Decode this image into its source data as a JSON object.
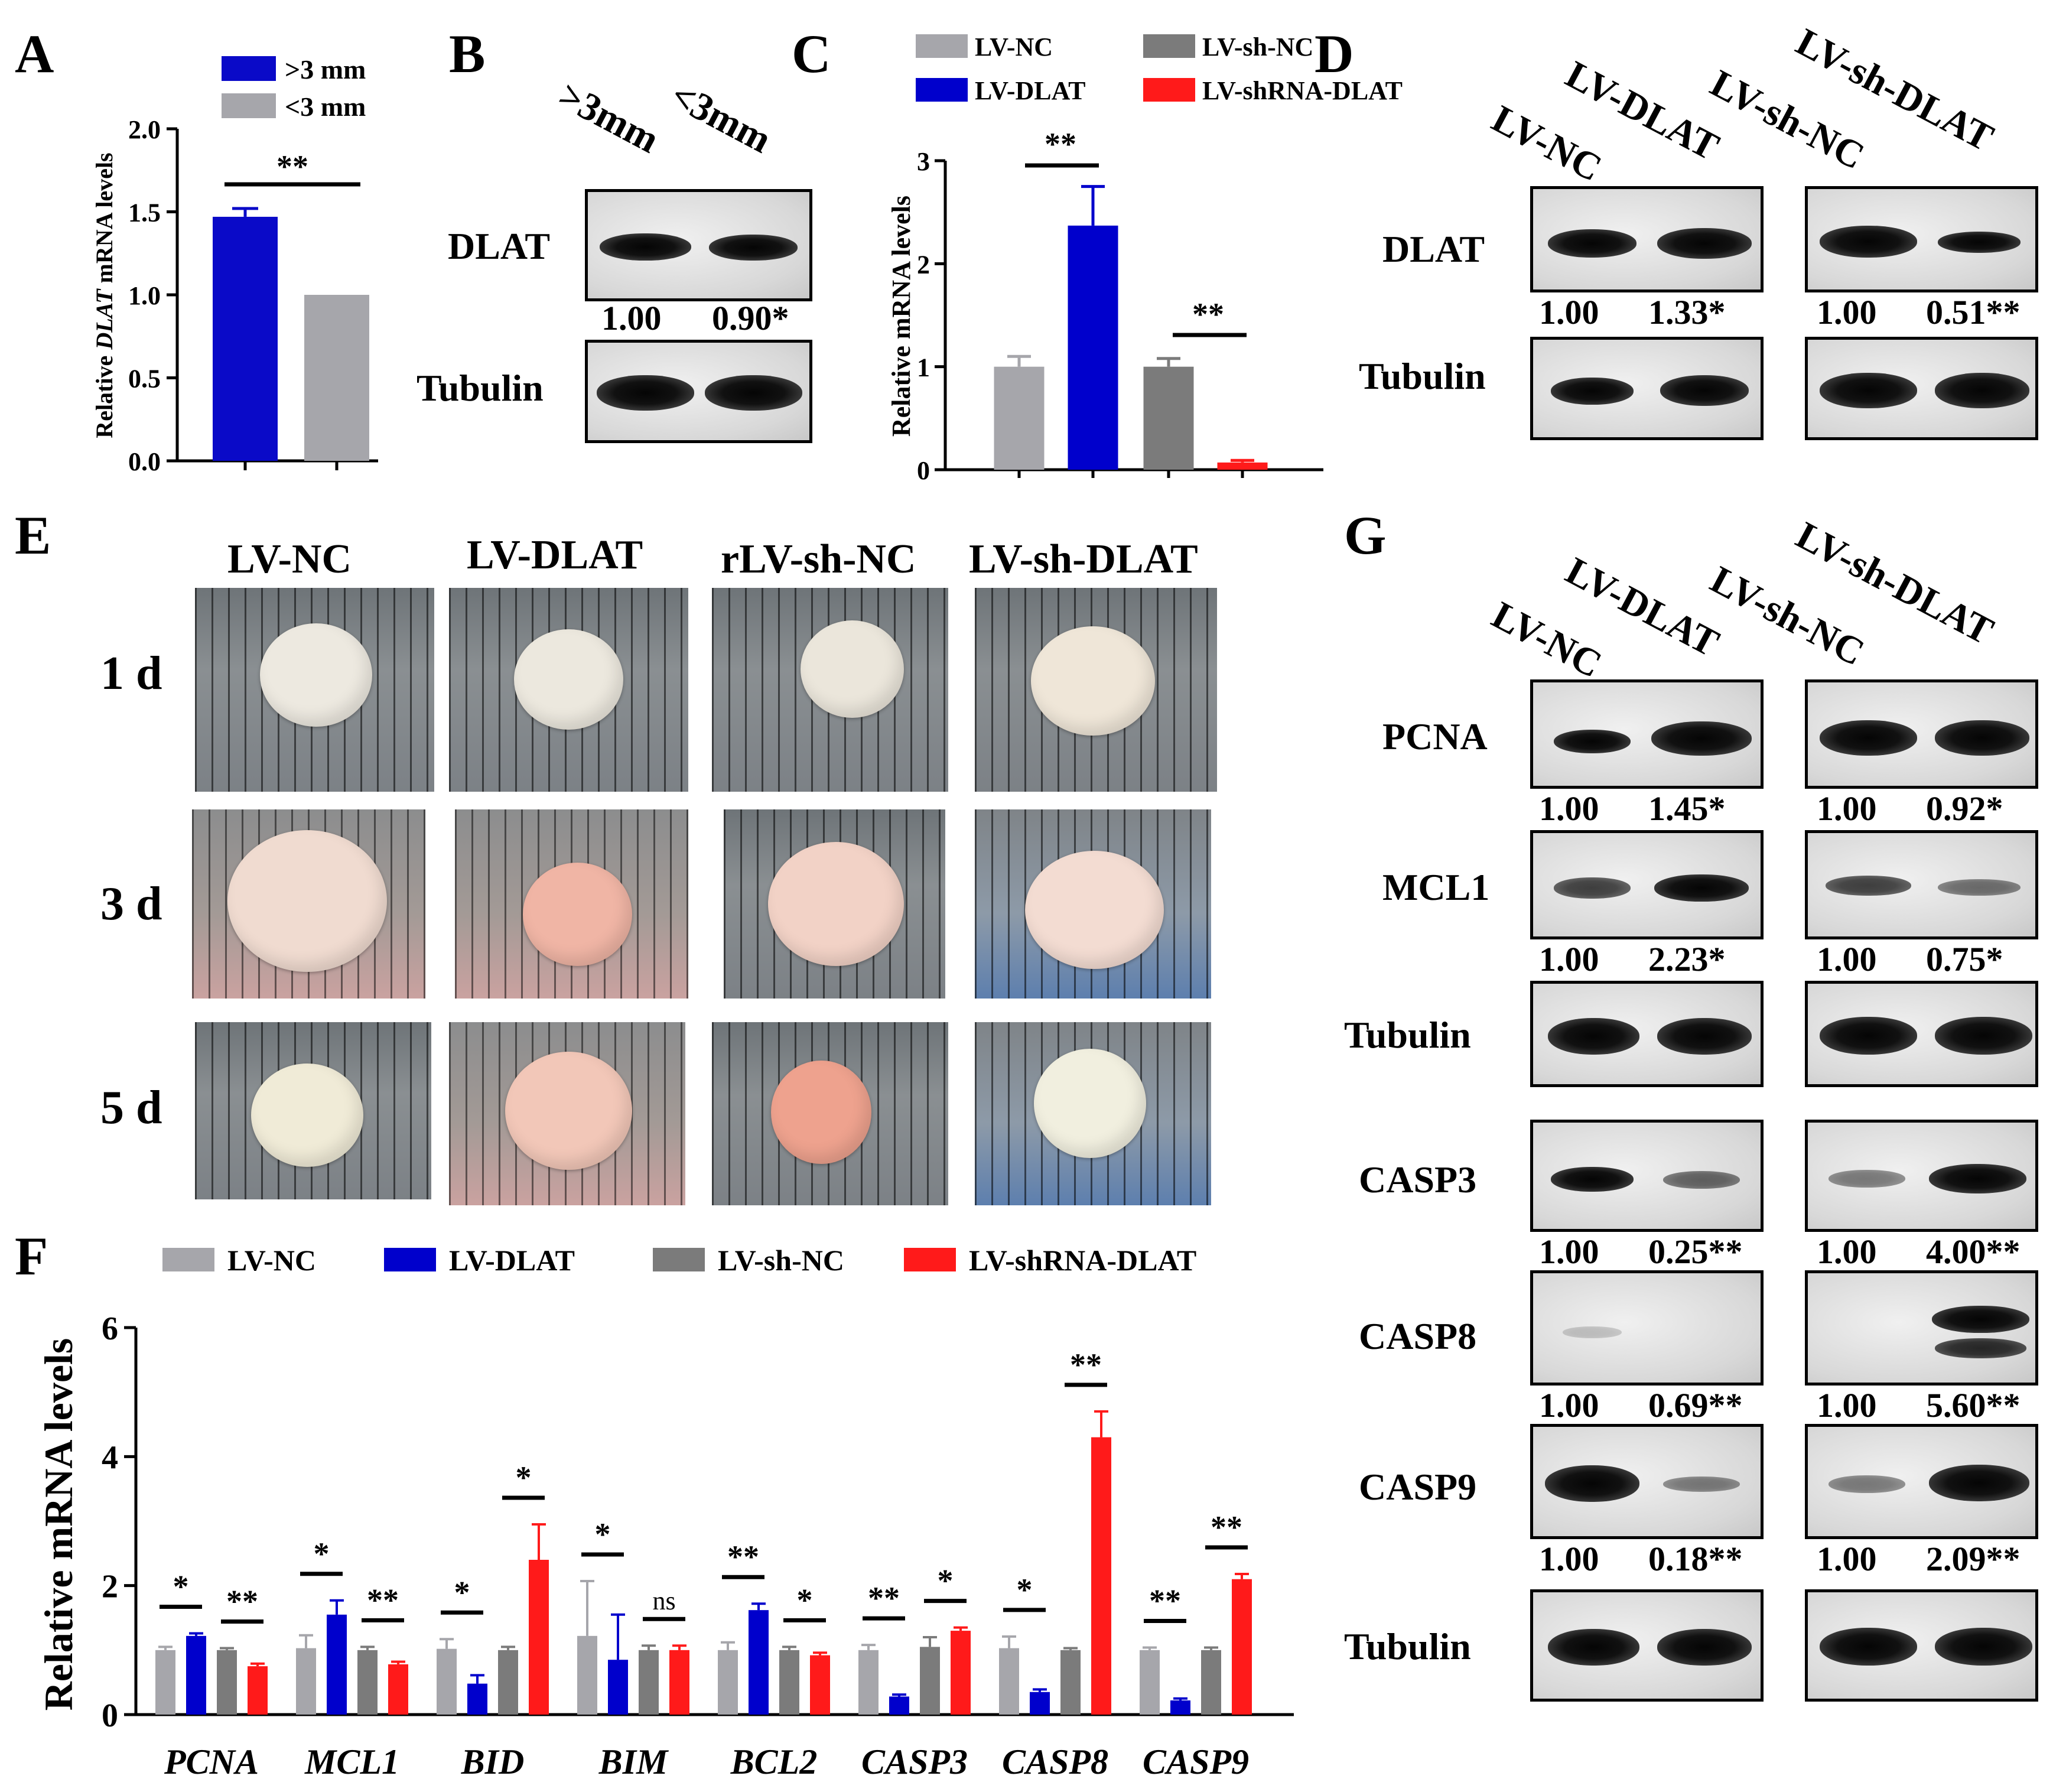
{
  "panels": {
    "A": "A",
    "B": "B",
    "C": "C",
    "D": "D",
    "E": "E",
    "F": "F",
    "G": "G"
  },
  "colors": {
    "lv_nc": "#a6a6ab",
    "lv_dlat": "#0000cc",
    "lv_sh_nc": "#7b7b7b",
    "lv_sh_dlat": "#ff1a1a",
    "gt3": "#0a0ac8",
    "lt3": "#a6a6ab"
  },
  "chart_data": [
    {
      "id": "A",
      "type": "bar",
      "ylabel_prefix": "Relative ",
      "ylabel_gene": "DLAT",
      "ylabel_suffix": " mRNA levels",
      "legend": [
        ">3 mm",
        "<3 mm"
      ],
      "categories": [
        ">3 mm",
        "<3 mm"
      ],
      "values": [
        1.47,
        1.0
      ],
      "errors": [
        0.05,
        0.0
      ],
      "ylim": [
        0,
        2.0
      ],
      "yticks": [
        "0.0",
        "0.5",
        "1.0",
        "1.5",
        "2.0"
      ],
      "significance": "**"
    },
    {
      "id": "C",
      "type": "bar",
      "ylabel": "Relative mRNA levels",
      "legend": [
        "LV-NC",
        "LV-sh-NC",
        "LV-DLAT",
        "LV-shRNA-DLAT"
      ],
      "categories": [
        "LV-NC",
        "LV-DLAT",
        "LV-sh-NC",
        "LV-shRNA-DLAT"
      ],
      "values": [
        1.0,
        2.37,
        1.0,
        0.07
      ],
      "errors": [
        0.1,
        0.38,
        0.08,
        0.02
      ],
      "ylim": [
        0,
        3
      ],
      "yticks": [
        "0",
        "1",
        "2",
        "3"
      ],
      "significance": [
        "**",
        "**"
      ]
    },
    {
      "id": "F",
      "type": "bar",
      "ylabel": "Relative mRNA levels",
      "legend": [
        "LV-NC",
        "LV-DLAT",
        "LV-sh-NC",
        "LV-shRNA-DLAT"
      ],
      "categories": [
        "PCNA",
        "MCL1",
        "BID",
        "BIM",
        "BCL2",
        "CASP3",
        "CASP8",
        "CASP9"
      ],
      "series": [
        {
          "name": "LV-NC",
          "values": [
            1.0,
            1.03,
            1.02,
            1.22,
            1.0,
            1.0,
            1.03,
            1.0
          ],
          "errors": [
            0.05,
            0.2,
            0.15,
            0.85,
            0.12,
            0.08,
            0.18,
            0.04
          ]
        },
        {
          "name": "LV-DLAT",
          "values": [
            1.22,
            1.55,
            0.48,
            0.85,
            1.62,
            0.28,
            0.35,
            0.22
          ],
          "errors": [
            0.04,
            0.22,
            0.13,
            0.7,
            0.1,
            0.03,
            0.04,
            0.03
          ]
        },
        {
          "name": "LV-sh-NC",
          "values": [
            1.0,
            1.0,
            1.0,
            1.0,
            1.0,
            1.05,
            1.0,
            1.0
          ],
          "errors": [
            0.03,
            0.05,
            0.05,
            0.07,
            0.05,
            0.15,
            0.03,
            0.04
          ]
        },
        {
          "name": "LV-shRNA-DLAT",
          "values": [
            0.75,
            0.78,
            2.4,
            1.0,
            0.92,
            1.3,
            4.3,
            2.1
          ],
          "errors": [
            0.04,
            0.04,
            0.55,
            0.07,
            0.04,
            0.05,
            0.4,
            0.08
          ]
        }
      ],
      "ylim": [
        0,
        6
      ],
      "yticks": [
        "0",
        "2",
        "4",
        "6"
      ],
      "sig_left": [
        "*",
        "*",
        "*",
        "*",
        "**",
        "**",
        "*",
        "**"
      ],
      "sig_right": [
        "**",
        "**",
        "*",
        "ns",
        "*",
        "*",
        "**",
        "**"
      ]
    }
  ],
  "panelB": {
    "lanes": [
      ">3mm",
      "<3mm"
    ],
    "rows": [
      "DLAT",
      "Tubulin"
    ],
    "quant": [
      "1.00",
      "0.90*"
    ]
  },
  "panelD": {
    "lanes": [
      "LV-NC",
      "LV-DLAT",
      "LV-sh-NC",
      "LV-sh-DLAT"
    ],
    "rows": [
      "DLAT",
      "Tubulin"
    ],
    "quant_left": [
      "1.00",
      "1.33*"
    ],
    "quant_right": [
      "1.00",
      "0.51**"
    ]
  },
  "panelE": {
    "columns": [
      "LV-NC",
      "LV-DLAT",
      "rLV-sh-NC",
      "LV-sh-DLAT"
    ],
    "rows": [
      "1 d",
      "3 d",
      "5 d"
    ]
  },
  "panelG": {
    "lanes": [
      "LV-NC",
      "LV-DLAT",
      "LV-sh-NC",
      "LV-sh-DLAT"
    ],
    "rows": [
      "PCNA",
      "MCL1",
      "Tubulin",
      "CASP3",
      "CASP8",
      "CASP9",
      "Tubulin"
    ],
    "quant": {
      "PCNA": {
        "left": [
          "1.00",
          "1.45*"
        ],
        "right": [
          "1.00",
          "0.92*"
        ]
      },
      "MCL1": {
        "left": [
          "1.00",
          "2.23*"
        ],
        "right": [
          "1.00",
          "0.75*"
        ]
      },
      "CASP3": {
        "left": [
          "1.00",
          "0.25**"
        ],
        "right": [
          "1.00",
          "4.00**"
        ]
      },
      "CASP8": {
        "left": [
          "1.00",
          "0.69**"
        ],
        "right": [
          "1.00",
          "5.60**"
        ]
      },
      "CASP9": {
        "left": [
          "1.00",
          "0.18**"
        ],
        "right": [
          "1.00",
          "2.09**"
        ]
      }
    }
  }
}
